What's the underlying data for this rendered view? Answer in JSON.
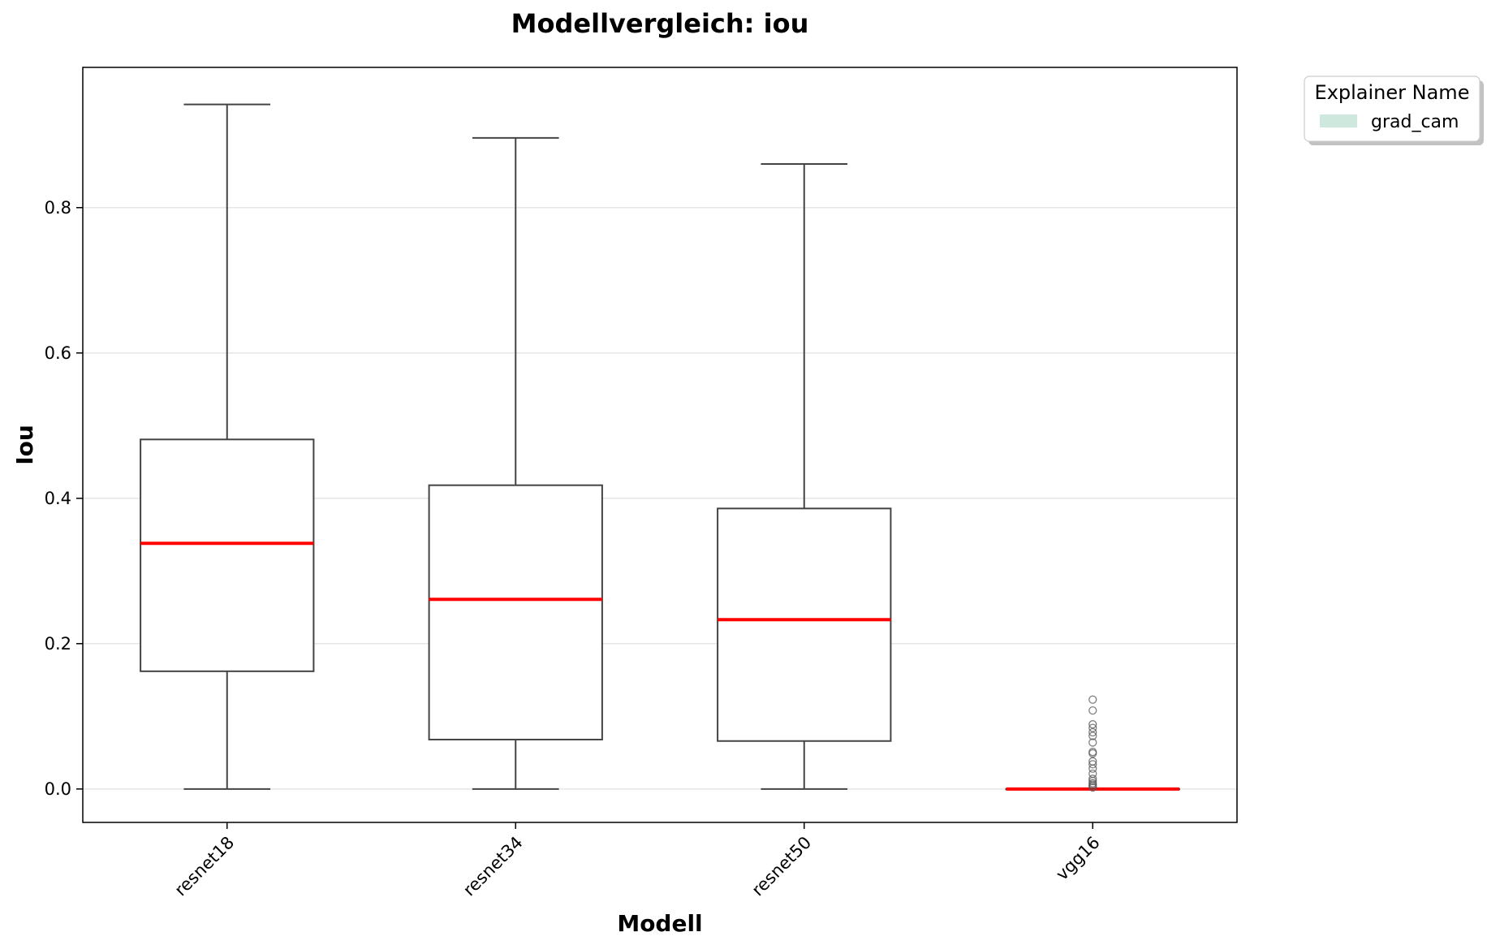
{
  "chart_data": {
    "type": "box",
    "title": "Modellvergleich: iou",
    "xlabel": "Modell",
    "ylabel": "Iou",
    "ylim": [
      -0.046,
      0.993
    ],
    "yticks": [
      "0.0",
      "0.2",
      "0.4",
      "0.6",
      "0.8"
    ],
    "grid": "horizontal",
    "categories": [
      "resnet18",
      "resnet34",
      "resnet50",
      "vgg16"
    ],
    "legend": {
      "title": "Explainer Name",
      "placement": "outside-top-right",
      "entries": [
        {
          "label": "grad_cam",
          "color": "#cfe8de"
        }
      ]
    },
    "series": [
      {
        "name": "grad_cam",
        "boxes": [
          {
            "category": "resnet18",
            "whisker_low": 0.0,
            "q1": 0.162,
            "median": 0.338,
            "q3": 0.481,
            "whisker_high": 0.942,
            "outliers": []
          },
          {
            "category": "resnet34",
            "whisker_low": 0.0,
            "q1": 0.068,
            "median": 0.261,
            "q3": 0.418,
            "whisker_high": 0.896,
            "outliers": []
          },
          {
            "category": "resnet50",
            "whisker_low": 0.0,
            "q1": 0.066,
            "median": 0.233,
            "q3": 0.386,
            "whisker_high": 0.86,
            "outliers": []
          },
          {
            "category": "vgg16",
            "whisker_low": 0.0,
            "q1": 0.0,
            "median": 0.0,
            "q3": 0.0,
            "whisker_high": 0.0,
            "outliers": [
              0.123,
              0.108,
              0.089,
              0.084,
              0.078,
              0.073,
              0.064,
              0.051,
              0.049,
              0.038,
              0.034,
              0.028,
              0.021,
              0.014,
              0.011,
              0.008,
              0.006,
              0.004,
              0.002
            ]
          }
        ]
      }
    ],
    "colors": {
      "median": "#ff0000",
      "box_edge": "#444444",
      "legend_patch": "#cfe8de",
      "grid": "#e6e6e6"
    }
  }
}
